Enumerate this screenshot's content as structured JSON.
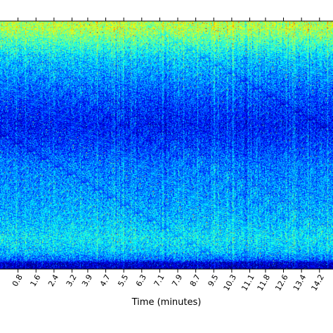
{
  "chart_data": {
    "type": "heatmap",
    "title": "",
    "xlabel": "Time (minutes)",
    "ylabel": "",
    "x_ticks": [
      "0.8",
      "1.6",
      "2.4",
      "3.2",
      "3.9",
      "4.7",
      "5.5",
      "6.3",
      "7.1",
      "7.9",
      "8.7",
      "9.5",
      "10.3",
      "11.1",
      "11.8",
      "12.6",
      "13.4",
      "14.2"
    ],
    "xlim": [
      0,
      14.8
    ],
    "colormap": "jet",
    "colorbar_shown": false,
    "value_range": [
      0,
      1
    ],
    "band_profile": {
      "row_fraction": [
        0.0,
        0.03,
        0.08,
        0.15,
        0.22,
        0.28,
        0.35,
        0.42,
        0.5,
        0.58,
        0.65,
        0.72,
        0.8,
        0.88,
        0.93,
        0.965,
        0.975,
        1.0
      ],
      "mean_intensity": [
        0.55,
        0.55,
        0.45,
        0.33,
        0.27,
        0.22,
        0.17,
        0.14,
        0.18,
        0.24,
        0.26,
        0.28,
        0.31,
        0.36,
        0.32,
        0.22,
        0.08,
        0.05
      ]
    },
    "colors": {
      "low": "#00007f",
      "mid": "#00c8ff",
      "high": "#ff6000"
    }
  }
}
